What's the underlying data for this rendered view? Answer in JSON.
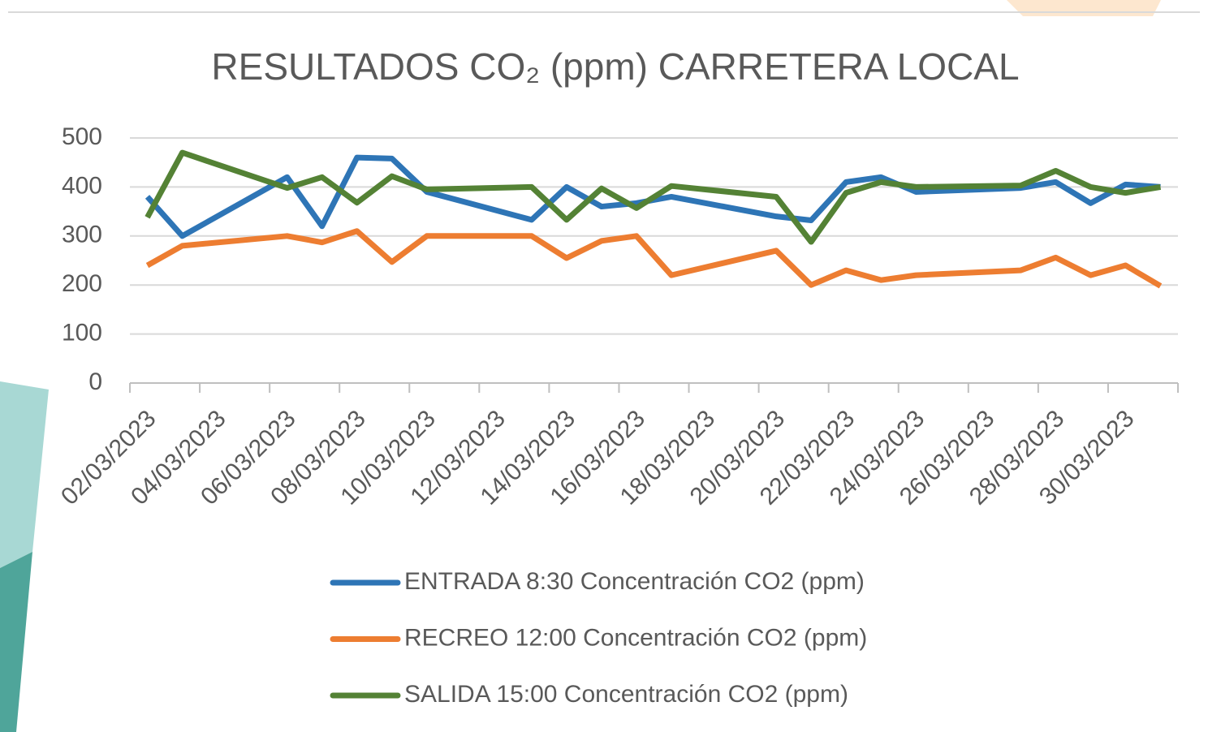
{
  "chart_data": {
    "type": "line",
    "title": "RESULTADOS CO₂ (ppm) CARRETERA LOCAL",
    "x": [
      "02/03/2023",
      "03/03/2023",
      "06/03/2023",
      "07/03/2023",
      "08/03/2023",
      "09/03/2023",
      "10/03/2023",
      "13/03/2023",
      "14/03/2023",
      "15/03/2023",
      "16/03/2023",
      "17/03/2023",
      "20/03/2023",
      "21/03/2023",
      "22/03/2023",
      "23/03/2023",
      "24/03/2023",
      "27/03/2023",
      "28/03/2023",
      "29/03/2023",
      "30/03/2023",
      "31/03/2023"
    ],
    "series": [
      {
        "name": "ENTRADA 8:30 Concentración CO2 (ppm)",
        "color": "#2e75b6",
        "values": [
          380,
          300,
          420,
          320,
          460,
          458,
          390,
          333,
          400,
          360,
          367,
          380,
          340,
          332,
          410,
          420,
          390,
          398,
          410,
          367,
          405,
          400
        ]
      },
      {
        "name": "RECREO 12:00 Concentración CO2 (ppm)",
        "color": "#ed7d31",
        "values": [
          240,
          280,
          300,
          287,
          310,
          247,
          300,
          300,
          255,
          290,
          300,
          220,
          270,
          200,
          230,
          210,
          220,
          230,
          256,
          220,
          240,
          198
        ]
      },
      {
        "name": "SALIDA 15:00 Concentración CO2 (ppm)",
        "color": "#548235",
        "values": [
          338,
          470,
          398,
          420,
          368,
          422,
          395,
          400,
          333,
          397,
          357,
          402,
          380,
          288,
          388,
          410,
          400,
          403,
          433,
          400,
          388,
          400
        ]
      }
    ],
    "xlim": [
      "02/03/2023",
      "31/03/2023"
    ],
    "xticks": [
      "02/03/2023",
      "04/03/2023",
      "06/03/2023",
      "08/03/2023",
      "10/03/2023",
      "12/03/2023",
      "14/03/2023",
      "16/03/2023",
      "18/03/2023",
      "20/03/2023",
      "22/03/2023",
      "24/03/2023",
      "26/03/2023",
      "28/03/2023",
      "30/03/2023"
    ],
    "ylim": [
      0,
      500
    ],
    "yticks": [
      0,
      100,
      200,
      300,
      400,
      500
    ],
    "grid": true,
    "legend": "bottom"
  }
}
